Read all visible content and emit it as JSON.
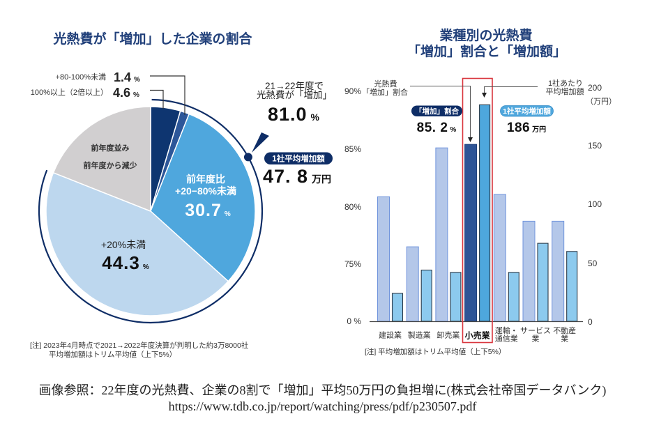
{
  "left_panel": {
    "title": "光熱費が「増加」した企業の割合",
    "callout": {
      "line1": "21→22年度で",
      "line2": "光熱費が「増加」",
      "value": "81.0",
      "value_unit": "%",
      "badge": "1社平均増加額",
      "avg_value": "47. 8",
      "avg_unit": "万円"
    },
    "notes": [
      "[注]  2023年4月時点で2021→2022年度決算が判明した約3万8000社",
      "平均増加額はトリム平均値（上下5%）"
    ]
  },
  "right_panel": {
    "title_lines": [
      "業種別の光熱費",
      "「増加」割合と「増加額」"
    ],
    "left_series_label": [
      "光熱費",
      "「増加」割合"
    ],
    "right_series_label": [
      "1社あたり",
      "平均増加額"
    ],
    "highlight": {
      "category": "小売業",
      "ratio_badge": "「増加」割合",
      "ratio_value": "85. 2",
      "ratio_unit": "%",
      "amount_badge": "1社平均増加額",
      "amount_value": "186",
      "amount_unit": "万円"
    },
    "note": "[注]  平均増加額はトリム平均値（上下5%）"
  },
  "caption": {
    "line1": "画像参照：22年度の光熱費、企業の8割で「増加」平均50万円の負担増に(株式会社帝国データバンク)",
    "line2": "https://www.tdb.co.jp/report/watching/press/pdf/p230507.pdf"
  },
  "colors": {
    "navy": "#0e2d66",
    "title": "#21407a",
    "highlight_frame": "#d9363e"
  },
  "chart_data": [
    {
      "type": "pie",
      "title": "光熱費が「増加」した企業の割合",
      "slices": [
        {
          "label": "100%以上（2倍以上）",
          "label_lines": [
            "100%以上（2倍以上）"
          ],
          "value": 4.6,
          "value_text": "4.6",
          "unit": "%",
          "color": "#0e3570"
        },
        {
          "label": "+80-100%未満",
          "label_lines": [
            "+80-100%未満"
          ],
          "value": 1.4,
          "value_text": "1.4",
          "unit": "%",
          "color": "#2d5799"
        },
        {
          "label": "前年度比 +20−80%未満",
          "label_lines": [
            "前年度比",
            "+20−80%未満"
          ],
          "value": 30.7,
          "value_text": "30.7",
          "unit": "%",
          "color": "#4fa7dd"
        },
        {
          "label": "+20%未満",
          "label_lines": [
            "+20%未満"
          ],
          "value": 44.3,
          "value_text": "44.3",
          "unit": "%",
          "color": "#bdd7ee"
        },
        {
          "label": "前年度並み・前年度から減少",
          "label_lines": [
            "前年度並み",
            "前年度から減少"
          ],
          "value": 19.0,
          "color": "#d1cfd0"
        }
      ],
      "increase_total": 81.0,
      "avg_increase_man_yen": 47.8
    },
    {
      "type": "bar",
      "title": "業種別の光熱費「増加」割合と「増加額」",
      "categories": [
        "建設業",
        "製造業",
        "卸売業",
        "小売業",
        "運輸・通信業",
        "サービス業",
        "不動産業"
      ],
      "category_label_lines": [
        [
          "建設業"
        ],
        [
          "製造業"
        ],
        [
          "卸売業"
        ],
        [
          "小売業"
        ],
        [
          "運輸・",
          "通信業"
        ],
        [
          "サービス",
          "業"
        ],
        [
          "不動産",
          "業"
        ]
      ],
      "highlight_index": 3,
      "series": [
        {
          "name": "光熱費「増加」割合",
          "axis": "left",
          "unit": "%",
          "values": [
            80.7,
            76.4,
            84.9,
            85.2,
            80.9,
            78.6,
            78.6
          ],
          "color": "#b4c7e9",
          "highlight_color": "#2d5496"
        },
        {
          "name": "1社あたり平均増加額",
          "axis": "right",
          "unit": "万円",
          "values": [
            24,
            44,
            42,
            186,
            42,
            67,
            60
          ],
          "color": "#8ccaee",
          "highlight_color": "#4ea7dd"
        }
      ],
      "left_axis": {
        "tick_values": [
          0,
          75,
          80,
          85,
          90
        ],
        "tick_labels": [
          "0 %",
          "75%",
          "80%",
          "85%",
          "90%"
        ],
        "broken_between": [
          0,
          75
        ]
      },
      "right_axis": {
        "tick_values": [
          0,
          50,
          100,
          150,
          200
        ],
        "tick_labels": [
          "0",
          "50",
          "100",
          "150",
          "200"
        ],
        "unit_label": "（万円）",
        "range": [
          0,
          200
        ]
      },
      "xlabel": "",
      "ylabel": "光熱費「増加」割合",
      "y2label": "1社あたり平均増加額（万円）",
      "note": "平均増加額はトリム平均値（上下5%）"
    }
  ]
}
